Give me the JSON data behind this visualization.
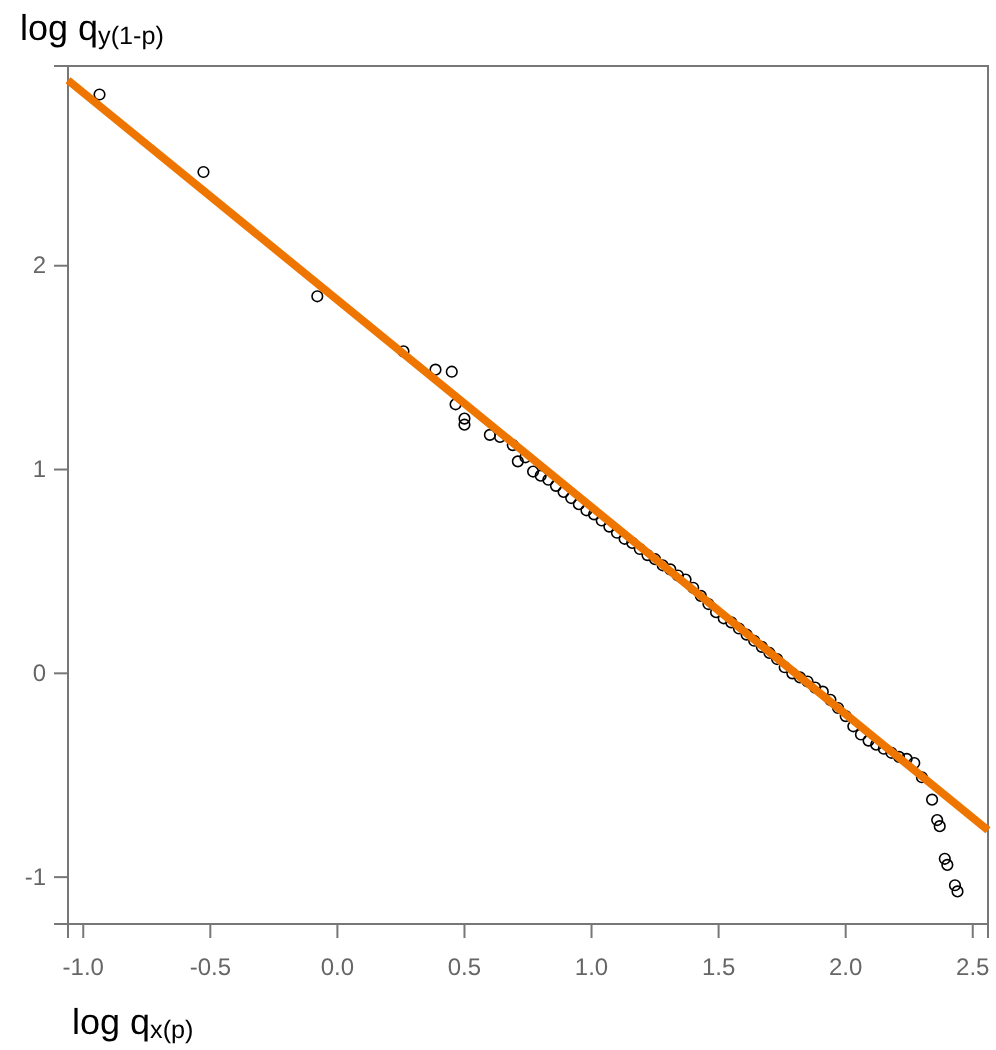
{
  "chart_data": {
    "type": "scatter",
    "xlabel": "log q$_{x(p)}$",
    "ylabel": "log q$_{y(1-p)}$",
    "xlim": [
      -1.06,
      2.56
    ],
    "ylim": [
      -1.23,
      2.98
    ],
    "xticks": [
      {
        "value": -1,
        "label": "-1.0"
      },
      {
        "value": -0.5,
        "label": "-0.5"
      },
      {
        "value": 0,
        "label": "0.0"
      },
      {
        "value": 0.5,
        "label": "0.5"
      },
      {
        "value": 1,
        "label": "1.0"
      },
      {
        "value": 1.5,
        "label": "1.5"
      },
      {
        "value": 2,
        "label": "2.0"
      },
      {
        "value": 2.5,
        "label": "2.5"
      }
    ],
    "yticks": [
      -1,
      0,
      1,
      2
    ],
    "grid": false,
    "series": [
      {
        "marker": "circle",
        "color": "#000000",
        "x": [
          -0.936,
          -0.527,
          -0.079,
          0.26,
          0.386,
          0.45,
          0.465,
          0.5,
          0.5,
          0.6,
          0.64,
          0.69,
          0.71,
          0.74,
          0.77,
          0.8,
          0.83,
          0.86,
          0.89,
          0.92,
          0.95,
          0.98,
          1.01,
          1.04,
          1.07,
          1.1,
          1.13,
          1.16,
          1.19,
          1.22,
          1.25,
          1.28,
          1.31,
          1.34,
          1.37,
          1.4,
          1.43,
          1.46,
          1.49,
          1.52,
          1.55,
          1.58,
          1.61,
          1.64,
          1.67,
          1.7,
          1.73,
          1.76,
          1.79,
          1.82,
          1.85,
          1.88,
          1.91,
          1.94,
          1.97,
          2.0,
          2.03,
          2.06,
          2.09,
          2.12,
          2.15,
          2.18,
          2.21,
          2.24,
          2.27,
          2.3,
          2.34,
          2.36,
          2.37,
          2.39,
          2.4,
          2.43,
          2.44
        ],
        "values": [
          2.84,
          2.46,
          1.85,
          1.58,
          1.49,
          1.48,
          1.32,
          1.25,
          1.22,
          1.17,
          1.16,
          1.12,
          1.04,
          1.06,
          0.99,
          0.97,
          0.95,
          0.92,
          0.89,
          0.86,
          0.83,
          0.8,
          0.78,
          0.75,
          0.72,
          0.69,
          0.66,
          0.64,
          0.61,
          0.58,
          0.56,
          0.53,
          0.51,
          0.48,
          0.46,
          0.42,
          0.38,
          0.34,
          0.3,
          0.27,
          0.25,
          0.22,
          0.19,
          0.16,
          0.13,
          0.1,
          0.07,
          0.03,
          0.0,
          -0.02,
          -0.04,
          -0.07,
          -0.09,
          -0.13,
          -0.17,
          -0.21,
          -0.26,
          -0.3,
          -0.33,
          -0.35,
          -0.37,
          -0.39,
          -0.41,
          -0.42,
          -0.44,
          -0.51,
          -0.62,
          -0.72,
          -0.75,
          -0.91,
          -0.94,
          -1.04,
          -1.07
        ]
      },
      {
        "type": "line",
        "color": "#ee7600",
        "line_style": "solid",
        "marker": "none",
        "x": [
          -1.06,
          2.56
        ],
        "values": [
          2.91,
          -0.77
        ]
      }
    ]
  }
}
